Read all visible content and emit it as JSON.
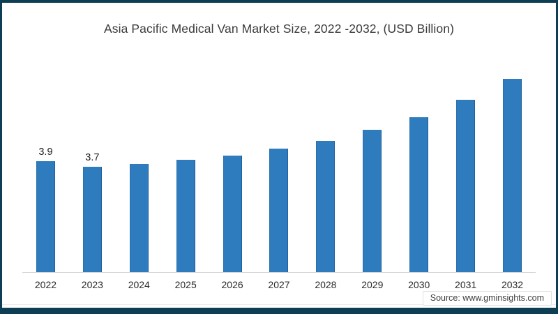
{
  "frame": {
    "border_color": "#0e3e54",
    "background": "#ffffff"
  },
  "source": "Source: www.gminsights.com",
  "chart_data": {
    "type": "bar",
    "title": "Asia Pacific Medical Van Market Size, 2022 -2032, (USD Billion)",
    "unit": "USD Billion",
    "categories": [
      "2022",
      "2023",
      "2024",
      "2025",
      "2026",
      "2027",
      "2028",
      "2029",
      "2030",
      "2031",
      "2032"
    ],
    "values": [
      3.9,
      3.7,
      3.8,
      3.95,
      4.1,
      4.35,
      4.6,
      5.0,
      5.45,
      6.05,
      6.8
    ],
    "data_labels": [
      "3.9",
      "3.7",
      "",
      "",
      "",
      "",
      "",
      "",
      "",
      "",
      ""
    ],
    "bar_color": "#2e7bbe",
    "bar_edge_color": "#1f5f9c",
    "xlabel": "",
    "ylabel": "",
    "ylim": [
      0,
      7.1
    ],
    "grid": false,
    "legend": false,
    "y_axis_shown": false
  }
}
